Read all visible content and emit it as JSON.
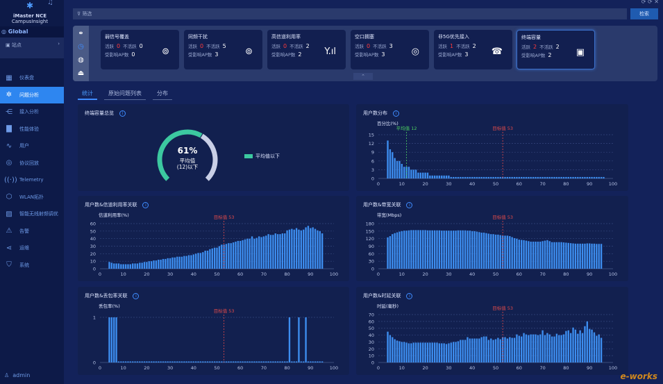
{
  "app": {
    "logo_line1": "iMaster NCE",
    "logo_line2": "CampusInsight"
  },
  "sidebar": {
    "scope": "Global",
    "site": "站点",
    "user": "admin",
    "items": [
      {
        "label": "仪表盘",
        "icon": "dashboard-icon"
      },
      {
        "label": "问题分析",
        "icon": "gear-icon",
        "active": true
      },
      {
        "label": "接入分析",
        "icon": "access-icon"
      },
      {
        "label": "性能体验",
        "icon": "bar-chart-icon"
      },
      {
        "label": "用户",
        "icon": "pulse-icon"
      },
      {
        "label": "协议回放",
        "icon": "target-icon"
      },
      {
        "label": "Telemetry",
        "icon": "signal-icon"
      },
      {
        "label": "WLAN拓扑",
        "icon": "topology-icon"
      },
      {
        "label": "智能无线射频调优",
        "icon": "monitor-chart-icon"
      },
      {
        "label": "告警",
        "icon": "warning-icon"
      },
      {
        "label": "运维",
        "icon": "share-icon"
      },
      {
        "label": "系统",
        "icon": "shield-icon"
      }
    ]
  },
  "search": {
    "placeholder": "筛选",
    "button": "检索"
  },
  "cards": [
    {
      "title": "弱信号覆盖",
      "active_label": "活跃",
      "active": "0",
      "inactive_label": "不活跃",
      "inactive": "0",
      "ap_label": "受影响AP数",
      "ap": "0",
      "icon": "⊚"
    },
    {
      "title": "同频干扰",
      "active_label": "活跃",
      "active": "0",
      "inactive_label": "不活跃",
      "inactive": "5",
      "ap_label": "受影响AP数",
      "ap": "3",
      "icon": "⊚"
    },
    {
      "title": "高信道利用率",
      "active_label": "活跃",
      "active": "0",
      "inactive_label": "不活跃",
      "inactive": "2",
      "ap_label": "受影响AP数",
      "ap": "2",
      "icon": "Y.ıl"
    },
    {
      "title": "空口拥塞",
      "active_label": "活跃",
      "active": "0",
      "inactive_label": "不活跃",
      "inactive": "3",
      "ap_label": "受影响AP数",
      "ap": "3",
      "icon": "◎"
    },
    {
      "title": "非5G优先接入",
      "active_label": "活跃",
      "active": "1",
      "inactive_label": "不活跃",
      "inactive": "2",
      "ap_label": "受影响AP数",
      "ap": "3",
      "icon": "☎"
    },
    {
      "title": "终端容量",
      "active_label": "活跃",
      "active": "2",
      "inactive_label": "不活跃",
      "inactive": "2",
      "ap_label": "受影响AP数",
      "ap": "2",
      "icon": "▣",
      "selected": true
    }
  ],
  "tabs": [
    {
      "label": "统计",
      "active": true
    },
    {
      "label": "原始问题列表"
    },
    {
      "label": "分布"
    }
  ],
  "gauge": {
    "title": "终端容量总览",
    "percent": 61,
    "value_text": "61%",
    "center_line1": "平均值",
    "center_line2": "(12)以下",
    "legend": "平均值以下",
    "color": "#3cc8a0",
    "rest_color": "#c9cfe6"
  },
  "chart_data": [
    {
      "id": "dist",
      "type": "bar",
      "title": "用户数分布",
      "ylabel": "百分比(%)",
      "xlim": [
        0,
        100
      ],
      "ylim": [
        0,
        15
      ],
      "yticks": [
        0,
        3,
        6,
        9,
        12,
        15
      ],
      "xticks": [
        0,
        10,
        20,
        30,
        40,
        50,
        60,
        70,
        80,
        90,
        100
      ],
      "x_start": 4,
      "values": [
        13,
        10,
        9,
        7,
        6,
        6,
        5,
        4,
        4,
        4,
        3,
        3,
        3,
        2,
        2,
        2,
        2,
        2,
        1,
        1,
        1,
        1,
        1,
        1,
        1,
        1,
        1,
        0.5,
        0.5,
        0.5,
        0.5,
        0.5,
        0.5,
        0.5,
        0.5,
        0.5,
        0.5,
        0.5,
        0.5,
        0.5,
        0.5,
        0.5,
        0.5,
        0.5,
        0.5,
        0.5,
        0.5,
        0.5,
        0.5,
        0.5,
        0.5,
        0.5,
        0.5,
        0.5,
        0.5,
        0.5,
        0.5,
        0.5,
        0.5,
        0.5,
        0.5,
        0.5,
        0.5,
        0.5,
        0.5,
        0.5,
        0.5,
        0.5,
        0.5,
        0.5,
        0.5,
        0.5,
        0.5,
        0.5,
        0.5,
        0.5,
        0.5,
        0.5,
        0.5,
        0.5,
        0.5,
        0.5,
        0.5,
        0.5,
        0.5,
        0.5,
        0.5,
        0.5,
        0.5,
        0.5,
        0.5,
        0.5,
        0.5
      ],
      "markers": [
        {
          "label": "平均值 12",
          "x": 12,
          "color": "#4cd060"
        },
        {
          "label": "目标值 53",
          "x": 53,
          "color": "#e04a4a"
        }
      ]
    },
    {
      "id": "util",
      "type": "bar",
      "title": "用户数&信道利用率关联",
      "ylabel": "信道利用率(%)",
      "xlim": [
        0,
        100
      ],
      "ylim": [
        0,
        60
      ],
      "yticks": [
        0,
        10,
        20,
        30,
        40,
        50,
        60
      ],
      "xticks": [
        0,
        10,
        20,
        30,
        40,
        50,
        60,
        70,
        80,
        90,
        100
      ],
      "x_start": 4,
      "values": [
        9,
        8,
        7,
        7,
        7,
        6,
        6,
        6,
        6,
        6,
        7,
        7,
        7,
        8,
        8,
        9,
        9,
        10,
        10,
        11,
        11,
        12,
        12,
        13,
        13,
        14,
        14,
        15,
        15,
        16,
        16,
        16,
        17,
        17,
        18,
        18,
        19,
        20,
        21,
        21,
        22,
        24,
        24,
        26,
        27,
        28,
        28,
        30,
        32,
        32,
        33,
        34,
        34,
        35,
        36,
        37,
        37,
        38,
        39,
        40,
        40,
        43,
        40,
        41,
        43,
        42,
        43,
        44,
        46,
        45,
        45,
        47,
        46,
        46,
        47,
        47,
        51,
        52,
        53,
        52,
        54,
        52,
        51,
        52,
        55,
        57,
        54,
        55,
        53,
        51,
        50,
        47
      ],
      "markers": [
        {
          "label": "目标值 53",
          "x": 53,
          "color": "#e04a4a"
        }
      ]
    },
    {
      "id": "bw",
      "type": "bar",
      "title": "用户数&带宽关联",
      "ylabel": "带宽(Mbps)",
      "xlim": [
        0,
        100
      ],
      "ylim": [
        0,
        180
      ],
      "yticks": [
        0,
        30,
        60,
        90,
        120,
        150,
        180
      ],
      "xticks": [
        0,
        10,
        20,
        30,
        40,
        50,
        60,
        70,
        80,
        90,
        100
      ],
      "x_start": 4,
      "values": [
        125,
        130,
        138,
        142,
        145,
        148,
        150,
        152,
        152,
        153,
        154,
        154,
        154,
        154,
        154,
        154,
        154,
        153,
        153,
        153,
        153,
        153,
        153,
        152,
        152,
        152,
        152,
        152,
        152,
        152,
        153,
        153,
        153,
        153,
        152,
        152,
        150,
        150,
        148,
        146,
        144,
        144,
        142,
        140,
        138,
        138,
        136,
        136,
        134,
        132,
        132,
        132,
        130,
        126,
        122,
        120,
        116,
        115,
        114,
        112,
        110,
        108,
        108,
        108,
        108,
        108,
        110,
        112,
        114,
        110,
        106,
        106,
        106,
        106,
        106,
        105,
        104,
        103,
        102,
        101,
        100,
        100,
        100,
        100,
        100,
        101,
        101,
        100,
        100,
        99,
        99,
        99
      ],
      "markers": [
        {
          "label": "目标值 53",
          "x": 53,
          "color": "#e04a4a"
        }
      ]
    },
    {
      "id": "loss",
      "type": "bar",
      "title": "用户数&丢包率关联",
      "ylabel": "丢包率(%)",
      "xlim": [
        0,
        100
      ],
      "ylim": [
        0,
        1
      ],
      "yticks": [
        0,
        1
      ],
      "xticks": [
        0,
        10,
        20,
        30,
        40,
        50,
        60,
        70,
        80,
        90,
        100
      ],
      "x_start": 4,
      "values": [
        1,
        1,
        1,
        1,
        0,
        0,
        0,
        0,
        0,
        0,
        0,
        0,
        0,
        0,
        0,
        0,
        0,
        0,
        0,
        0,
        0,
        0,
        0,
        0,
        0,
        0,
        0,
        0,
        0,
        0,
        0,
        0,
        0,
        0,
        0,
        0,
        0,
        0,
        0,
        0,
        0,
        0,
        0,
        0,
        0,
        0,
        0,
        0,
        0,
        0,
        0,
        0,
        0,
        0,
        0,
        0,
        0,
        0,
        0,
        0,
        0,
        0,
        0,
        0,
        0,
        0,
        0,
        0,
        0,
        0,
        0,
        0,
        0,
        0,
        0,
        0,
        0,
        1,
        0,
        0,
        0,
        1,
        0,
        0,
        1,
        0,
        0,
        0,
        0,
        0,
        0,
        0
      ],
      "markers": [
        {
          "label": "目标值 53",
          "x": 53,
          "color": "#e04a4a"
        }
      ]
    },
    {
      "id": "lat",
      "type": "bar",
      "title": "用户数&时延关联",
      "ylabel": "时延(毫秒)",
      "xlim": [
        0,
        100
      ],
      "ylim": [
        0,
        70
      ],
      "yticks": [
        0,
        10,
        20,
        30,
        40,
        50,
        60,
        70
      ],
      "xticks": [
        0,
        10,
        20,
        30,
        40,
        50,
        60,
        70,
        80,
        90,
        100
      ],
      "x_start": 4,
      "values": [
        45,
        40,
        37,
        34,
        32,
        31,
        30,
        30,
        29,
        28,
        28,
        29,
        29,
        29,
        29,
        29,
        29,
        29,
        29,
        29,
        29,
        29,
        28,
        28,
        28,
        27,
        28,
        29,
        30,
        30,
        31,
        33,
        33,
        33,
        37,
        35,
        35,
        35,
        35,
        35,
        37,
        38,
        38,
        33,
        35,
        33,
        34,
        36,
        34,
        37,
        37,
        35,
        37,
        36,
        36,
        41,
        39,
        38,
        43,
        41,
        40,
        41,
        41,
        41,
        40,
        41,
        47,
        40,
        43,
        41,
        38,
        38,
        42,
        40,
        40,
        41,
        46,
        47,
        43,
        51,
        48,
        42,
        47,
        43,
        53,
        60,
        49,
        48,
        44,
        39,
        41,
        36
      ],
      "markers": [
        {
          "label": "目标值 53",
          "x": 53,
          "color": "#e04a4a"
        }
      ]
    }
  ],
  "colors": {
    "bar": "#3d8ef0",
    "accent": "#2e86f0",
    "alert": "#ff3a3a"
  }
}
